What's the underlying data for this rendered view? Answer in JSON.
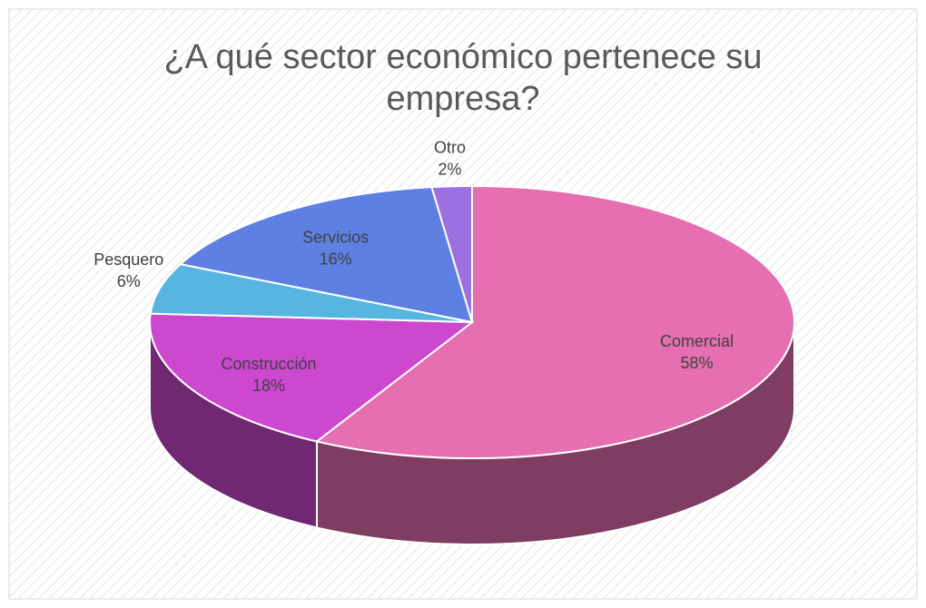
{
  "chart_data": {
    "type": "pie",
    "title": "¿A qué sector económico pertenece su empresa?",
    "categories": [
      "Comercial",
      "Construcción",
      "Pesquero",
      "Servicios",
      "Otro"
    ],
    "values": [
      58,
      18,
      6,
      16,
      2
    ],
    "value_labels": [
      "58%",
      "18%",
      "6%",
      "16%",
      "2%"
    ],
    "colors": [
      "#e56fb0",
      "#cc48cf",
      "#56b6e0",
      "#5d80e2",
      "#9c70e0"
    ]
  }
}
